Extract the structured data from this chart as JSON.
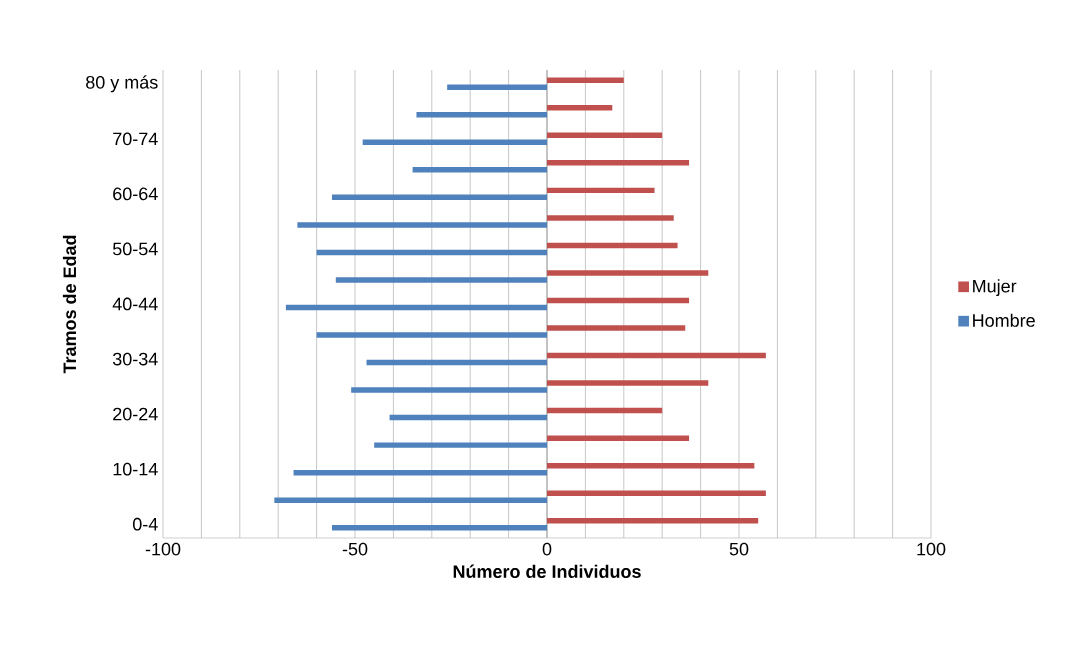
{
  "chart_data": {
    "type": "bar",
    "orientation": "horizontal",
    "xlabel": "Número de Individuos",
    "ylabel": "Tramos de Edad",
    "categories": [
      "80 y más",
      null,
      "70-74",
      null,
      "60-64",
      null,
      "50-54",
      null,
      "40-44",
      null,
      "30-34",
      null,
      "20-24",
      null,
      "10-14",
      null,
      "0-4"
    ],
    "series": [
      {
        "name": "Mujer",
        "color": "#c0504d",
        "values": [
          20,
          17,
          30,
          37,
          28,
          33,
          34,
          42,
          37,
          36,
          57,
          42,
          30,
          37,
          54,
          57,
          55
        ]
      },
      {
        "name": "Hombre",
        "color": "#4f81bd",
        "values": [
          -26,
          -34,
          -48,
          -35,
          -56,
          -65,
          -60,
          -55,
          -68,
          -60,
          -47,
          -51,
          -41,
          -45,
          -66,
          -71,
          -56
        ]
      }
    ],
    "xlim": [
      -100,
      100
    ],
    "xticks": [
      -100,
      {
        "value": -90,
        "label": null
      },
      {
        "value": -80,
        "label": null
      },
      {
        "value": -70,
        "label": null
      },
      {
        "value": -60,
        "label": null
      },
      -50,
      {
        "value": -40,
        "label": null
      },
      {
        "value": -30,
        "label": null
      },
      {
        "value": -20,
        "label": null
      },
      {
        "value": -10,
        "label": null
      },
      0,
      {
        "value": 10,
        "label": null
      },
      {
        "value": 20,
        "label": null
      },
      {
        "value": 30,
        "label": null
      },
      {
        "value": 40,
        "label": null
      },
      50,
      {
        "value": 60,
        "label": null
      },
      {
        "value": 70,
        "label": null
      },
      {
        "value": 80,
        "label": null
      },
      {
        "value": 90,
        "label": null
      },
      100
    ],
    "grid": "x",
    "legend": "right"
  }
}
